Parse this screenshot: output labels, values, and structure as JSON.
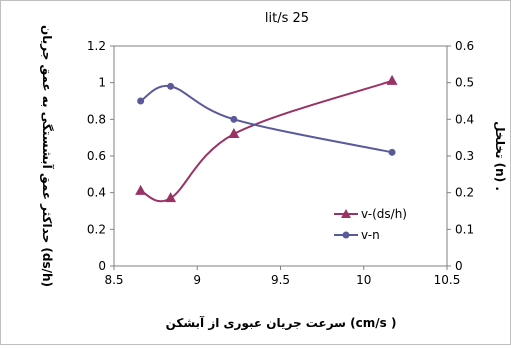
{
  "chart_data": {
    "type": "line",
    "title": "lit/s 25",
    "xlabel": "سرعت جریان عبوری از آبشکن (cm/s )",
    "ylabel_left": "حداکثر عمق آبشستگی به عمق جریان (ds/h)",
    "ylabel_right": "تخلخل (n) .",
    "x_range": [
      8.5,
      10.5
    ],
    "x_ticks": [
      "8.5",
      "9",
      "9.5",
      "10",
      "10.5"
    ],
    "y_left_range": [
      0,
      1.2
    ],
    "y_left_ticks": [
      "0",
      "0.2",
      "0.4",
      "0.6",
      "0.8",
      "1",
      "1.2"
    ],
    "y_right_range": [
      0,
      0.6
    ],
    "y_right_ticks": [
      "0",
      "0.1",
      "0.2",
      "0.3",
      "0.4",
      "0.5",
      "0.6"
    ],
    "grid": false,
    "legend_position": "bottom-right inside plot",
    "series": [
      {
        "name": "v-(ds/h)",
        "axis": "left",
        "color": "#993366",
        "marker": "triangle",
        "x": [
          8.66,
          8.84,
          9.22,
          10.17
        ],
        "y": [
          0.41,
          0.37,
          0.72,
          1.01
        ]
      },
      {
        "name": "v-n",
        "axis": "right",
        "color": "#5a5a9a",
        "marker": "circle",
        "x": [
          8.66,
          8.84,
          9.22,
          10.17
        ],
        "y": [
          0.45,
          0.49,
          0.4,
          0.31
        ]
      }
    ]
  }
}
